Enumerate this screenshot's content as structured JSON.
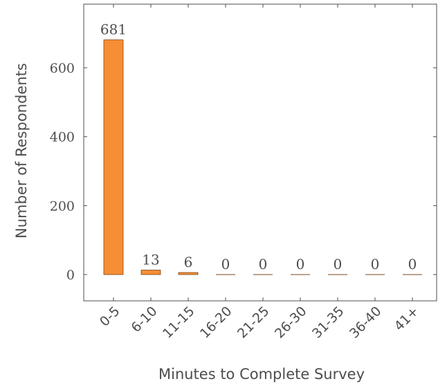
{
  "chart_data": {
    "type": "bar",
    "title": "",
    "xlabel": "Minutes to Complete Survey",
    "ylabel": "Number of Respondents",
    "categories": [
      "0-5",
      "6-10",
      "11-15",
      "16-20",
      "21-25",
      "26-30",
      "31-35",
      "36-40",
      "41+"
    ],
    "values": [
      681,
      13,
      6,
      0,
      0,
      0,
      0,
      0,
      0
    ],
    "data_labels": [
      "681",
      "13",
      "6",
      "0",
      "0",
      "0",
      "0",
      "0",
      "0"
    ],
    "yticks": [
      0,
      200,
      400,
      600
    ],
    "ytick_labels": [
      "0",
      "200",
      "400",
      "600"
    ],
    "ylim": [
      -77,
      780
    ],
    "grid": false,
    "legend": "none",
    "bar_color": "#f68e33",
    "bar_edge_color": "#7a4518",
    "axis_color": "#4d4d4d"
  }
}
